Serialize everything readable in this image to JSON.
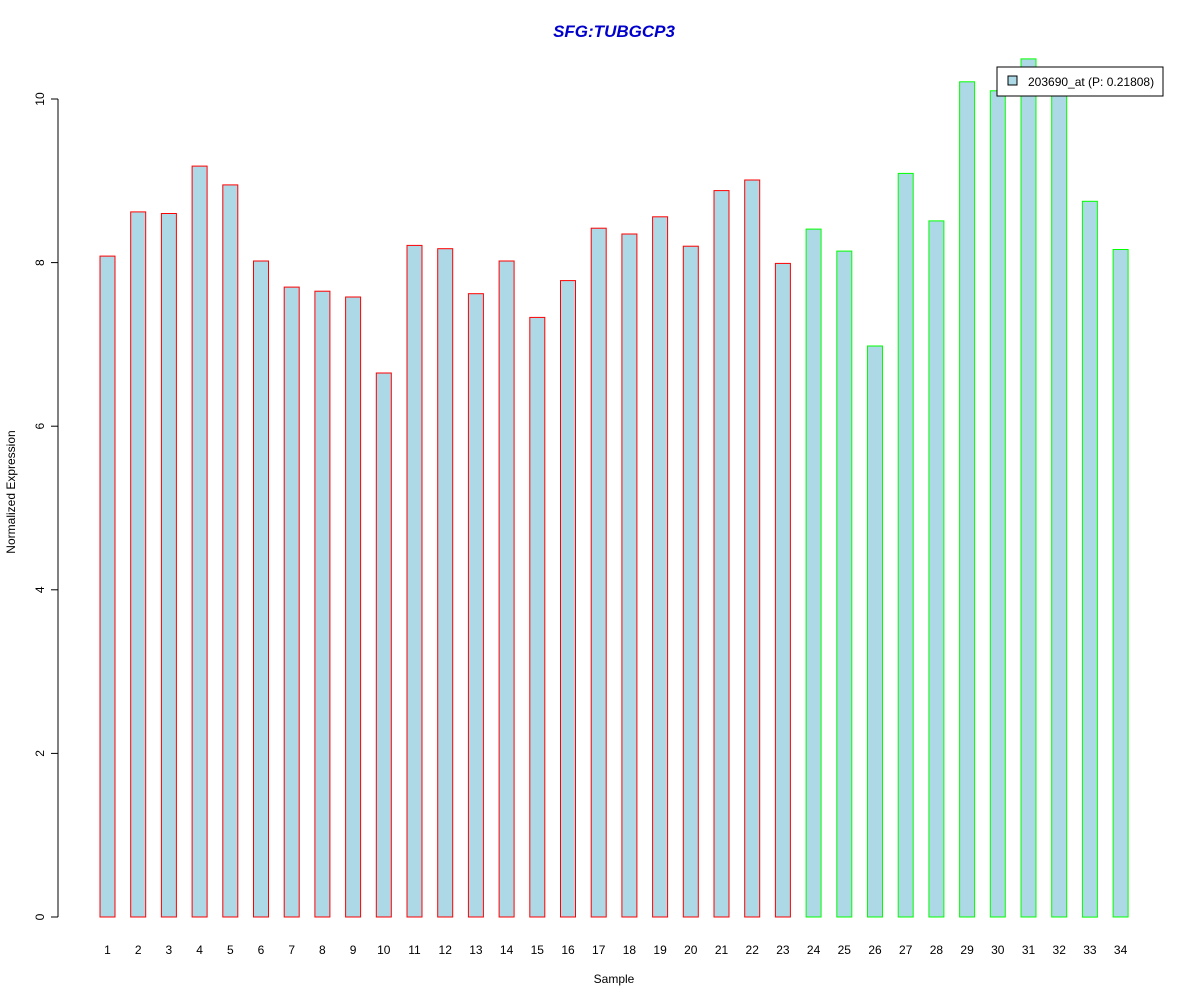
{
  "chart_data": {
    "type": "bar",
    "title": "SFG:TUBGCP3",
    "title_color": "#0000CC",
    "xlabel": "Sample",
    "ylabel": "Normalized Expression",
    "ylim": [
      0,
      10.5
    ],
    "yticks": [
      0,
      2,
      4,
      6,
      8,
      10
    ],
    "grid": false,
    "legend_position": "top-right",
    "categories": [
      "1",
      "2",
      "3",
      "4",
      "5",
      "6",
      "7",
      "8",
      "9",
      "10",
      "11",
      "12",
      "13",
      "14",
      "15",
      "16",
      "17",
      "18",
      "19",
      "20",
      "21",
      "22",
      "23",
      "24",
      "25",
      "26",
      "27",
      "28",
      "29",
      "30",
      "31",
      "32",
      "33",
      "34"
    ],
    "series": [
      {
        "name": "203690_at (P: 0.21808)",
        "fill": "#ADD8E6",
        "values": [
          8.08,
          8.62,
          8.6,
          9.18,
          8.95,
          8.02,
          7.7,
          7.65,
          7.58,
          6.65,
          8.21,
          8.17,
          7.62,
          8.02,
          7.33,
          7.78,
          8.42,
          8.35,
          8.56,
          8.2,
          8.88,
          9.01,
          7.99,
          8.41,
          8.14,
          6.98,
          9.09,
          8.51,
          10.21,
          10.1,
          10.49,
          10.3,
          8.75,
          8.16
        ],
        "border_colors": [
          "#FF0000",
          "#FF0000",
          "#FF0000",
          "#FF0000",
          "#FF0000",
          "#FF0000",
          "#FF0000",
          "#FF0000",
          "#FF0000",
          "#FF0000",
          "#FF0000",
          "#FF0000",
          "#FF0000",
          "#FF0000",
          "#FF0000",
          "#FF0000",
          "#FF0000",
          "#FF0000",
          "#FF0000",
          "#FF0000",
          "#FF0000",
          "#FF0000",
          "#FF0000",
          "#00FF00",
          "#00FF00",
          "#00FF00",
          "#00FF00",
          "#00FF00",
          "#00FF00",
          "#00FF00",
          "#00FF00",
          "#00FF00",
          "#00FF00",
          "#00FF00"
        ]
      }
    ]
  }
}
